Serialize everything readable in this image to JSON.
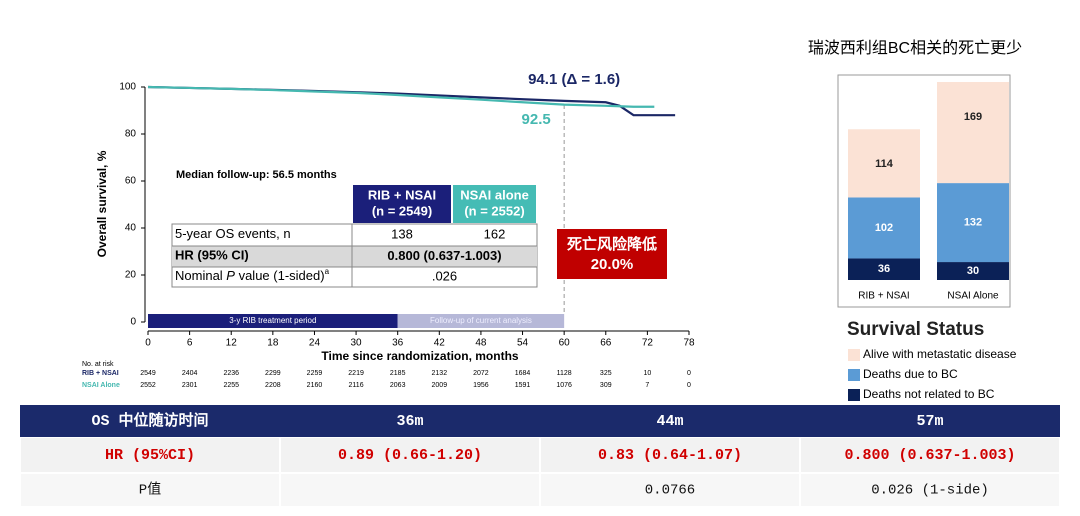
{
  "chart_data": [
    {
      "type": "line",
      "y_label": "Overall survival, %",
      "x_label": "Time since randomization, months",
      "x": [
        0,
        6,
        12,
        18,
        24,
        30,
        36,
        42,
        48,
        54,
        60,
        66,
        68,
        70,
        73,
        76
      ],
      "xlim": [
        0,
        78
      ],
      "xticks": [
        0,
        6,
        12,
        18,
        24,
        30,
        36,
        42,
        48,
        54,
        60,
        66,
        72,
        78
      ],
      "ylim": [
        0,
        100
      ],
      "yticks": [
        0,
        20,
        40,
        60,
        80,
        100
      ],
      "series": [
        {
          "name": "RIB + NSAI",
          "color": "#1b2766",
          "values": [
            100,
            99.6,
            99.2,
            98.8,
            98.3,
            97.8,
            97.2,
            96.4,
            95.6,
            94.8,
            94.1,
            93.5,
            92,
            88,
            88,
            88
          ]
        },
        {
          "name": "NSAI Alone",
          "color": "#45b8b0",
          "values": [
            100,
            99.6,
            99.2,
            98.7,
            98.1,
            97.5,
            96.6,
            95.6,
            94.6,
            93.5,
            92.5,
            92,
            91.8,
            91.6,
            91.6,
            null
          ]
        }
      ],
      "annotations": [
        {
          "text": "94.1 (Δ = 1.6)",
          "x": 60,
          "y": 94.1,
          "color": "#1b2766"
        },
        {
          "text": "92.5",
          "x": 60,
          "y": 92.5,
          "color": "#45b8b0"
        }
      ],
      "reference_x": 60,
      "periods": [
        {
          "label": "3-y RIB treatment period",
          "start": 0,
          "end": 36,
          "color": "#1b1f7a"
        },
        {
          "label": "Follow-up of current analysis",
          "start": 36,
          "end": 60,
          "color": "#b6b8d8"
        }
      ],
      "risk_table": {
        "title": "No. at risk",
        "rows": [
          [
            2549,
            2404,
            2236,
            2299,
            2259,
            2219,
            2185,
            2132,
            2072,
            1684,
            1128,
            325,
            10,
            0
          ],
          [
            2552,
            2301,
            2255,
            2208,
            2160,
            2116,
            2063,
            2009,
            1956,
            1591,
            1076,
            309,
            7,
            0
          ]
        ]
      },
      "inset_table": {
        "title": "Median follow-up: 56.5 months",
        "columns": [
          [
            "RIB + NSAI",
            "(n = 2549)"
          ],
          [
            "NSAI alone",
            "(n = 2552)"
          ]
        ],
        "column_colors": [
          "#1b1f7a",
          "#45bcb5"
        ],
        "rows": [
          {
            "label": [
              "5-year OS events, n"
            ],
            "cells": [
              138,
              162
            ]
          },
          {
            "label": [
              "HR (95% CI)"
            ],
            "cells": [
              "0.800 (0.637-1.003)"
            ]
          },
          {
            "label": [
              "Nominal ",
              "P",
              " value (1-sided)",
              "a"
            ],
            "cells": [
              ".026"
            ]
          }
        ],
        "highlight_row": 1
      },
      "callout": [
        "死亡风险降低",
        "20.0%"
      ]
    },
    {
      "type": "stacked_bar",
      "title": "瑞波西利组BC相关的死亡更少",
      "categories": [
        "RIB + NSAI",
        "NSAI Alone"
      ],
      "series": [
        {
          "name": "Deaths not related to BC",
          "color": "#0b2157",
          "values": [
            36,
            30
          ]
        },
        {
          "name": "Deaths due to BC",
          "color": "#5b9bd5",
          "values": [
            102,
            132
          ]
        },
        {
          "name": "Alive with metastatic disease",
          "color": "#fbe2d5",
          "values": [
            114,
            169
          ]
        }
      ],
      "legend_title": "Survival Status"
    }
  ],
  "table": {
    "header": [
      "OS 中位随访时间",
      "36m",
      "44m",
      "57m"
    ],
    "rows": [
      [
        "HR (95%CI)",
        "0.89 (0.66-1.20)",
        "0.83 (0.64-1.07)",
        "0.800 (0.637-1.003)"
      ],
      [
        "P值",
        null,
        "0.0766",
        "0.026 (1-side)"
      ]
    ]
  }
}
